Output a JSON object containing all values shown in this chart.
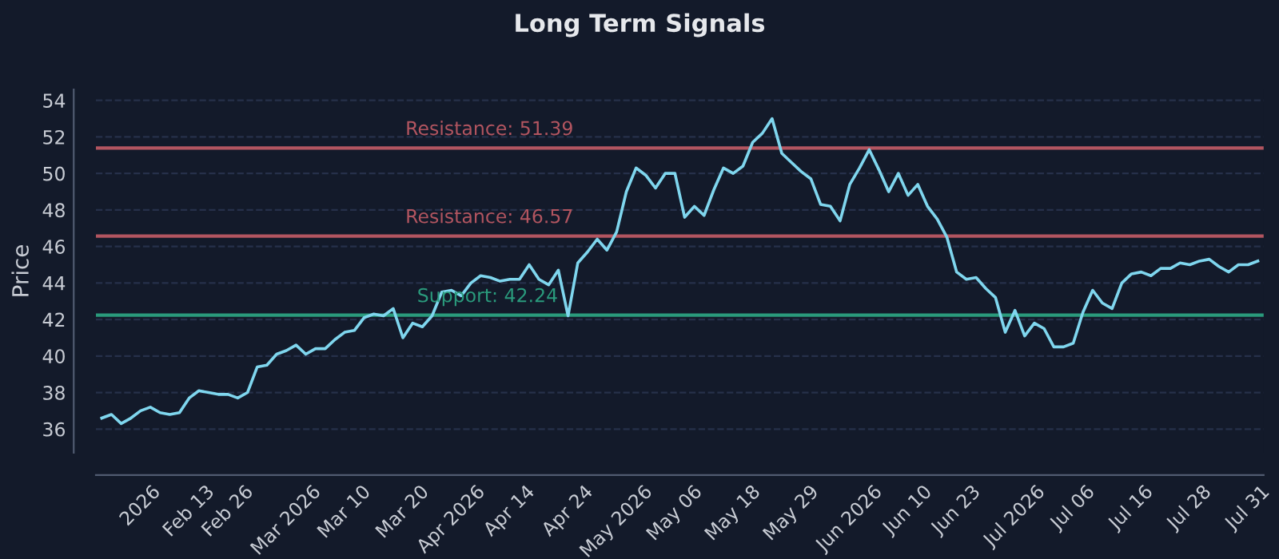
{
  "chart_data": {
    "type": "line",
    "title": "Long Term Signals",
    "ylabel": "Price",
    "categories": [
      null,
      null,
      null,
      null,
      "2026",
      null,
      null,
      null,
      null,
      "Feb 13",
      null,
      null,
      null,
      "Feb 26",
      null,
      null,
      null,
      null,
      null,
      "Mar 2026",
      null,
      null,
      null,
      null,
      null,
      "Mar 10",
      null,
      null,
      null,
      null,
      null,
      "Mar 20",
      null,
      null,
      null,
      null,
      "Apr 2026",
      null,
      null,
      null,
      null,
      null,
      "Apr 14",
      null,
      null,
      null,
      null,
      null,
      "Apr 24",
      null,
      null,
      null,
      null,
      "May 2026",
      null,
      null,
      null,
      null,
      null,
      "May 06",
      null,
      null,
      null,
      null,
      null,
      "May 18",
      null,
      null,
      null,
      null,
      null,
      "May 29",
      null,
      null,
      null,
      null,
      null,
      "Jun 2026",
      null,
      null,
      null,
      null,
      null,
      "Jun 10",
      null,
      null,
      null,
      null,
      "Jun 23",
      null,
      null,
      null,
      null,
      null,
      "Jul 2026",
      null,
      null,
      null,
      null,
      null,
      "Jul 06",
      null,
      null,
      null,
      null,
      null,
      "Jul 16",
      null,
      null,
      null,
      null,
      null,
      "Jul 28",
      null,
      null,
      null,
      null,
      null,
      "Jul 31",
      null
    ],
    "series": [
      {
        "color": "#7fd6ee",
        "values": [
          36.6,
          36.8,
          36.3,
          36.6,
          37.0,
          37.2,
          36.9,
          36.8,
          36.9,
          37.7,
          38.1,
          38.0,
          37.9,
          37.9,
          37.7,
          38.0,
          39.4,
          39.5,
          40.1,
          40.3,
          40.6,
          40.1,
          40.4,
          40.4,
          40.9,
          41.3,
          41.4,
          42.1,
          42.3,
          42.2,
          42.6,
          41.0,
          41.8,
          41.6,
          42.2,
          43.5,
          43.6,
          43.3,
          44.0,
          44.4,
          44.3,
          44.1,
          44.2,
          44.2,
          45.0,
          44.2,
          43.9,
          44.7,
          42.2,
          45.1,
          45.7,
          46.4,
          45.8,
          46.8,
          49.0,
          50.3,
          49.9,
          49.2,
          50.0,
          50.0,
          47.6,
          48.2,
          47.7,
          49.1,
          50.3,
          50.0,
          50.4,
          51.7,
          52.2,
          53.0,
          51.1,
          50.6,
          50.1,
          49.7,
          48.3,
          48.2,
          47.4,
          49.4,
          50.3,
          51.3,
          50.2,
          49.0,
          50.0,
          48.8,
          49.4,
          48.2,
          47.5,
          46.5,
          44.6,
          44.2,
          44.3,
          43.7,
          43.2,
          41.3,
          42.5,
          41.1,
          41.8,
          41.5,
          40.5,
          40.5,
          40.7,
          42.4,
          43.6,
          42.9,
          42.6,
          44.0,
          44.5,
          44.6,
          44.4,
          44.8,
          44.8,
          45.1,
          45.0,
          45.2,
          45.3,
          44.9,
          44.6,
          45.0,
          45.0,
          45.2
        ]
      }
    ],
    "ylim": [
      34.7,
      54.6
    ],
    "yticks": [
      36,
      38,
      40,
      42,
      44,
      46,
      48,
      50,
      52,
      54
    ],
    "ref_lines": [
      {
        "axis": "y",
        "value": 51.39,
        "label": "Resistance: 51.39",
        "color": "#b25560"
      },
      {
        "axis": "y",
        "value": 46.57,
        "label": "Resistance: 46.57",
        "color": "#b25560"
      },
      {
        "axis": "y",
        "value": 42.24,
        "label": "Support: 42.24",
        "color": "#2a9a7c"
      }
    ],
    "grid": "y",
    "legend": false,
    "marker": "none",
    "line_style": "solid"
  }
}
